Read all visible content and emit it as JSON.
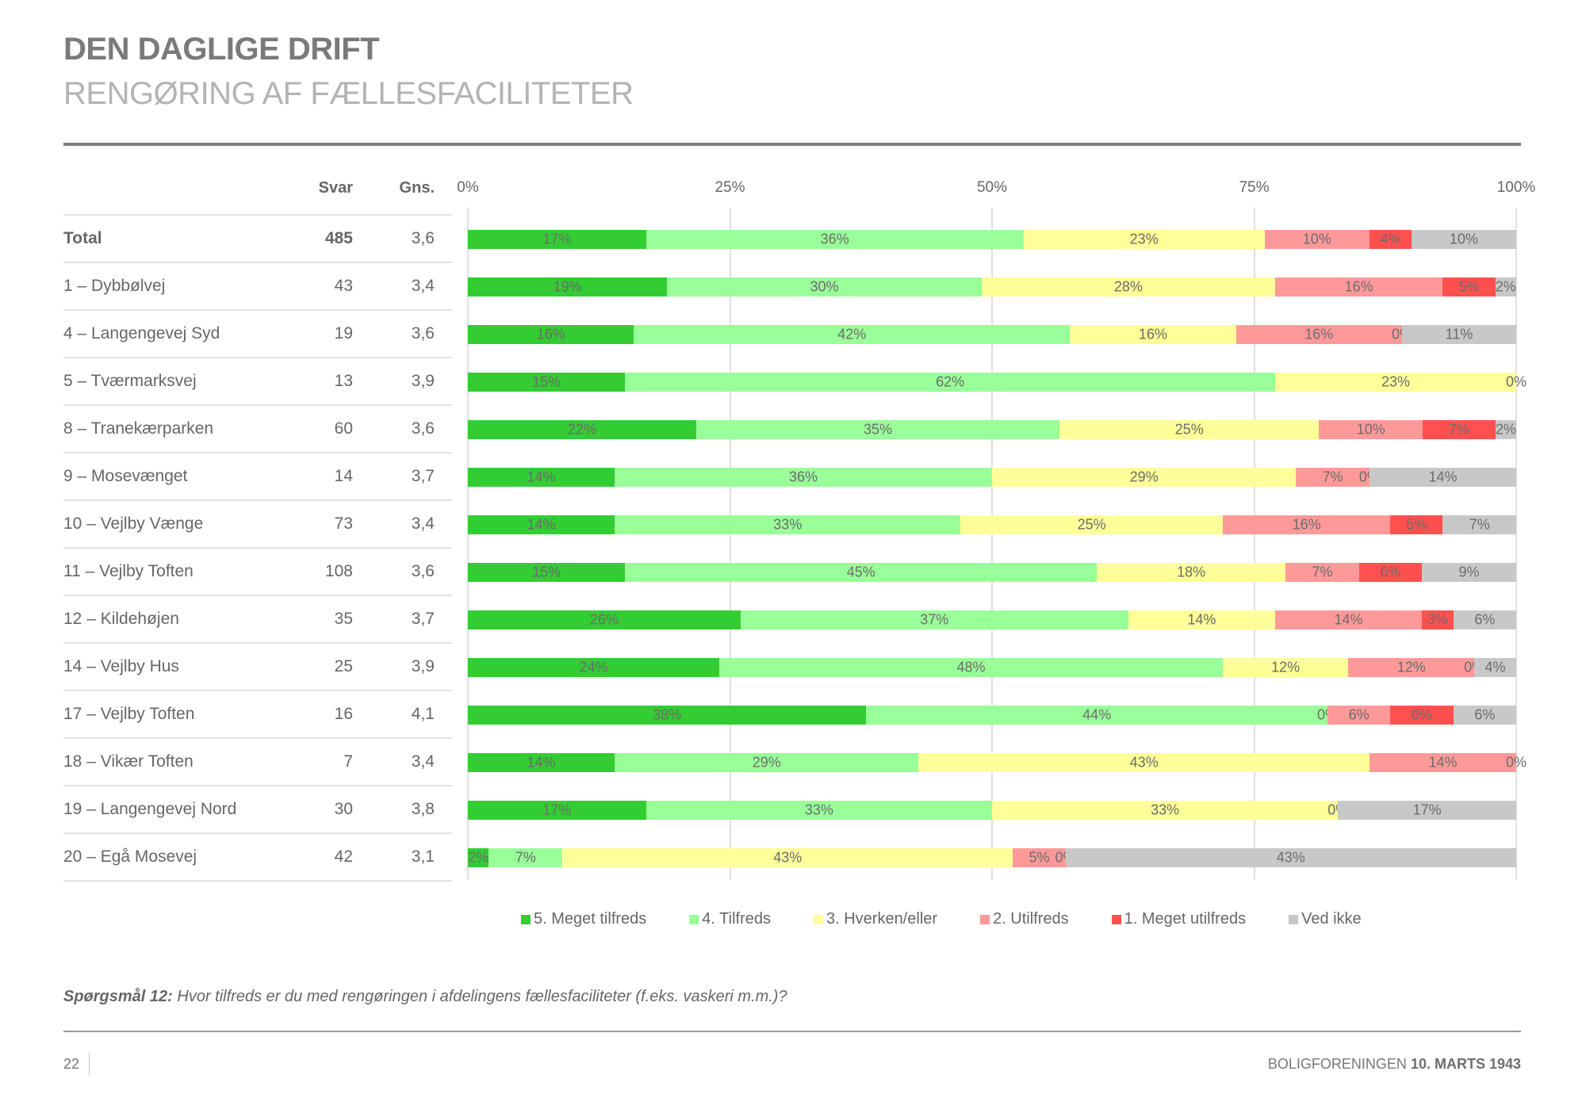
{
  "header": {
    "title": "DEN DAGLIGE DRIFT",
    "subtitle": "RENGØRING AF FÆLLESFACILITETER"
  },
  "table": {
    "col_svar": "Svar",
    "col_gns": "Gns."
  },
  "chart_data": {
    "type": "bar",
    "orientation": "horizontal",
    "stacked": "100%",
    "xlim": [
      0,
      100
    ],
    "x_ticks": [
      "0%",
      "25%",
      "50%",
      "75%",
      "100%"
    ],
    "grid": true,
    "legend_position": "bottom",
    "colors": [
      "#33cc33",
      "#99ff99",
      "#ffff99",
      "#ff9999",
      "#ff5050",
      "#c8c8c8"
    ],
    "series_names": [
      "5. Meget tilfreds",
      "4. Tilfreds",
      "3. Hverken/eller",
      "2. Utilfreds",
      "1. Meget utilfreds",
      "Ved ikke"
    ],
    "rows": [
      {
        "label": "Total",
        "svar": "485",
        "gns": "3,6",
        "bold": true,
        "values": [
          17,
          36,
          23,
          10,
          4,
          10
        ]
      },
      {
        "label": "1 – Dybbølvej",
        "svar": "43",
        "gns": "3,4",
        "values": [
          19,
          30,
          28,
          16,
          5,
          2
        ]
      },
      {
        "label": "4 – Langengevej Syd",
        "svar": "19",
        "gns": "3,6",
        "values": [
          16,
          42,
          16,
          16,
          0,
          11
        ]
      },
      {
        "label": "5 – Tværmarksvej",
        "svar": "13",
        "gns": "3,9",
        "values": [
          15,
          62,
          23,
          0,
          null,
          null
        ]
      },
      {
        "label": "8 – Tranekærparken",
        "svar": "60",
        "gns": "3,6",
        "values": [
          22,
          35,
          25,
          10,
          7,
          2
        ]
      },
      {
        "label": "9 – Mosevænget",
        "svar": "14",
        "gns": "3,7",
        "values": [
          14,
          36,
          29,
          7,
          0,
          14
        ]
      },
      {
        "label": "10 – Vejlby Vænge",
        "svar": "73",
        "gns": "3,4",
        "values": [
          14,
          33,
          25,
          16,
          5,
          7
        ]
      },
      {
        "label": "11 – Vejlby Toften",
        "svar": "108",
        "gns": "3,6",
        "values": [
          15,
          45,
          18,
          7,
          6,
          9
        ]
      },
      {
        "label": "12 – Kildehøjen",
        "svar": "35",
        "gns": "3,7",
        "values": [
          26,
          37,
          14,
          14,
          3,
          6
        ]
      },
      {
        "label": "14 – Vejlby Hus",
        "svar": "25",
        "gns": "3,9",
        "values": [
          24,
          48,
          12,
          12,
          0,
          4
        ]
      },
      {
        "label": "17 – Vejlby Toften",
        "svar": "16",
        "gns": "4,1",
        "values": [
          38,
          44,
          0,
          6,
          6,
          6
        ]
      },
      {
        "label": "18 – Vikær Toften",
        "svar": "7",
        "gns": "3,4",
        "values": [
          14,
          29,
          43,
          14,
          0,
          null
        ]
      },
      {
        "label": "19 – Langengevej Nord",
        "svar": "30",
        "gns": "3,8",
        "values": [
          17,
          33,
          33,
          0,
          null,
          17
        ]
      },
      {
        "label": "20 – Egå Mosevej",
        "svar": "42",
        "gns": "3,1",
        "values": [
          2,
          7,
          43,
          5,
          0,
          43
        ]
      }
    ]
  },
  "footer": {
    "question_label": "Spørgsmål 12:",
    "question_text": " Hvor tilfreds er du med rengøringen i afdelingens fællesfaciliteter (f.eks. vaskeri m.m.)?",
    "page_number": "22",
    "org_name": "BOLIGFORENINGEN ",
    "org_date": "10. MARTS 1943"
  }
}
